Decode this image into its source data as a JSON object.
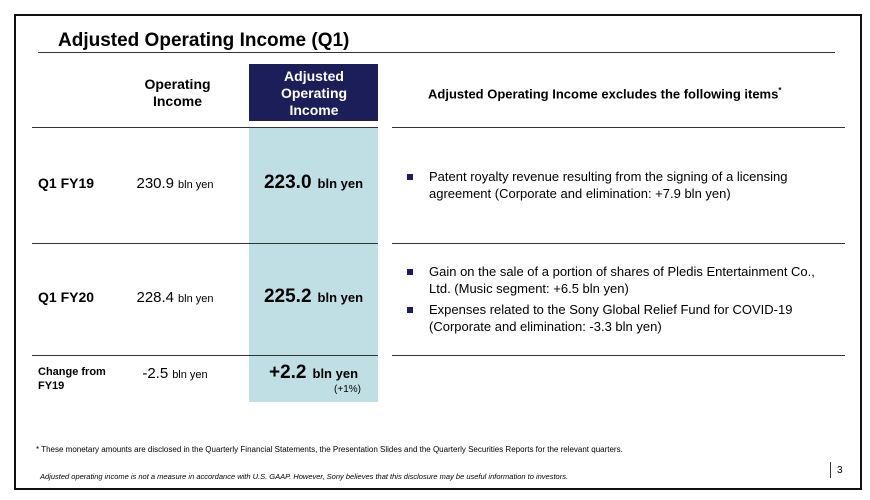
{
  "header": {
    "title": "Adjusted Operating Income (Q1)"
  },
  "table": {
    "columns": [
      "Operating Income",
      "Adjusted Operating Income",
      "Adjusted Operating Income excludes the following items"
    ],
    "column_note_mark": "*",
    "rows": [
      {
        "label": "Q1 FY19",
        "operating": {
          "value": "230.9",
          "unit": "bln yen"
        },
        "adjusted": {
          "value": "223.0",
          "unit": "bln yen"
        },
        "items": [
          "Patent royalty revenue resulting from the signing of a licensing agreement (Corporate and elimination: +7.9 bln yen)"
        ]
      },
      {
        "label": "Q1 FY20",
        "operating": {
          "value": "228.4",
          "unit": "bln yen"
        },
        "adjusted": {
          "value": "225.2",
          "unit": "bln yen"
        },
        "items": [
          "Gain on the sale of a portion of shares of Pledis Entertainment Co., Ltd. (Music segment: +6.5 bln yen)",
          "Expenses related to the Sony Global Relief Fund for COVID-19 (Corporate and elimination: -3.3 bln yen)"
        ]
      },
      {
        "label": "Change from FY19",
        "operating": {
          "value": "-2.5",
          "unit": "bln yen"
        },
        "adjusted": {
          "value": "+2.2",
          "unit": "bln yen",
          "note": "(+1%)"
        }
      }
    ]
  },
  "footnotes": [
    "* These monetary amounts are disclosed in the Quarterly Financial Statements, the Presentation Slides and the Quarterly Securities Reports for the relevant quarters.",
    "Adjusted operating income is not a measure in accordance with U.S. GAAP.  However, Sony believes that this disclosure may be useful information to investors."
  ],
  "page_number": "3"
}
